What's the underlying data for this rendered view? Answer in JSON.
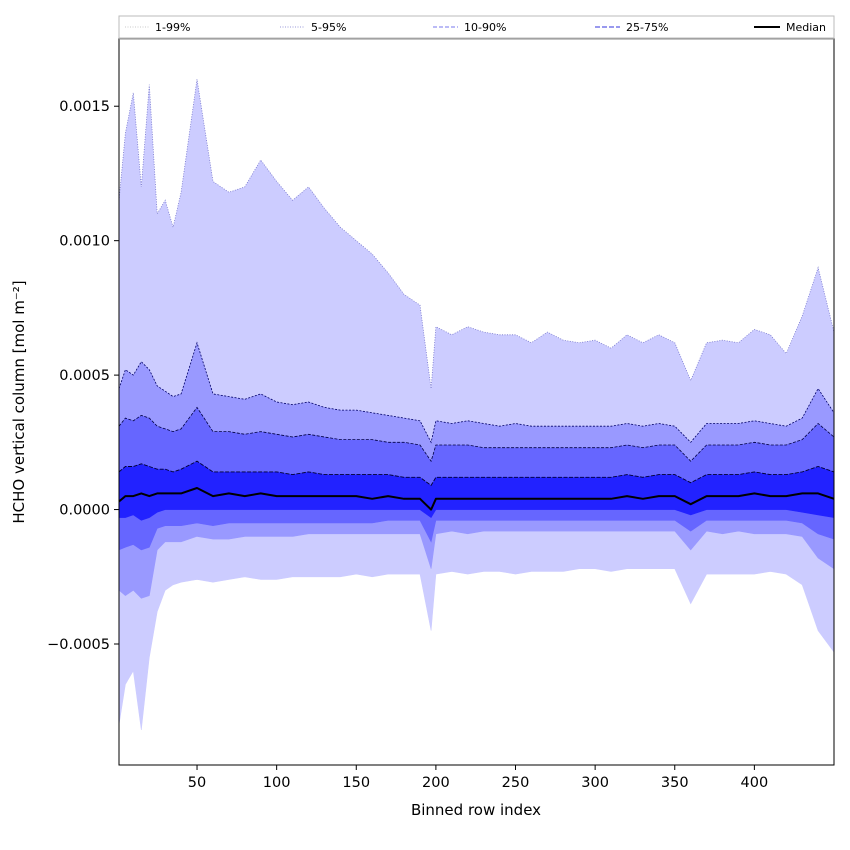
{
  "chart_data": {
    "type": "area",
    "title": "",
    "xlabel": "Binned row index",
    "ylabel": "HCHO vertical column [mol m⁻²]",
    "xlim": [
      1,
      450
    ],
    "ylim": [
      -0.00095,
      0.00175
    ],
    "x_ticks": [
      50,
      100,
      150,
      200,
      250,
      300,
      350,
      400
    ],
    "y_ticks": [
      -0.0005,
      0.0,
      0.0005,
      0.001,
      0.0015
    ],
    "y_tick_labels": [
      "−0.0005",
      "0.0000",
      "0.0005",
      "0.0010",
      "0.0015"
    ],
    "legend_placement": "top, single row spanning plot width",
    "legend": [
      "1-99%",
      "5-95%",
      "10-90%",
      "25-75%",
      "Median"
    ],
    "band_colors": [
      "#ccccff",
      "#9999ff",
      "#6666ff",
      "#2222ff"
    ],
    "median_color": "#000000",
    "x": [
      1,
      5,
      10,
      15,
      20,
      25,
      30,
      35,
      40,
      50,
      60,
      70,
      80,
      90,
      100,
      110,
      120,
      130,
      140,
      150,
      160,
      170,
      180,
      190,
      197,
      200,
      210,
      220,
      230,
      240,
      250,
      260,
      270,
      280,
      290,
      300,
      310,
      320,
      330,
      340,
      350,
      360,
      370,
      380,
      390,
      400,
      410,
      420,
      430,
      440,
      450
    ],
    "series": [
      {
        "name": "1-99%",
        "lower": [
          -0.0008,
          -0.00065,
          -0.0006,
          -0.00082,
          -0.00055,
          -0.00038,
          -0.0003,
          -0.00028,
          -0.00027,
          -0.00026,
          -0.00027,
          -0.00026,
          -0.00025,
          -0.00026,
          -0.00026,
          -0.00025,
          -0.00025,
          -0.00025,
          -0.00025,
          -0.00024,
          -0.00025,
          -0.00024,
          -0.00024,
          -0.00024,
          -0.00045,
          -0.00024,
          -0.00023,
          -0.00024,
          -0.00023,
          -0.00023,
          -0.00024,
          -0.00023,
          -0.00023,
          -0.00023,
          -0.00022,
          -0.00022,
          -0.00023,
          -0.00022,
          -0.00022,
          -0.00022,
          -0.00022,
          -0.00035,
          -0.00024,
          -0.00024,
          -0.00024,
          -0.00024,
          -0.00023,
          -0.00024,
          -0.00028,
          -0.00045,
          -0.00053
        ],
        "upper": [
          0.00115,
          0.0014,
          0.00155,
          0.0012,
          0.00158,
          0.0011,
          0.00115,
          0.00105,
          0.00118,
          0.0016,
          0.00122,
          0.00118,
          0.0012,
          0.0013,
          0.00122,
          0.00115,
          0.0012,
          0.00112,
          0.00105,
          0.001,
          0.00095,
          0.00088,
          0.0008,
          0.00076,
          0.00045,
          0.00068,
          0.00065,
          0.00068,
          0.00066,
          0.00065,
          0.00065,
          0.00062,
          0.00066,
          0.00063,
          0.00062,
          0.00063,
          0.0006,
          0.00065,
          0.00062,
          0.00065,
          0.00062,
          0.00048,
          0.00062,
          0.00063,
          0.00062,
          0.00067,
          0.00065,
          0.00058,
          0.00072,
          0.0009,
          0.00066
        ]
      },
      {
        "name": "5-95%",
        "lower": [
          -0.0003,
          -0.00032,
          -0.0003,
          -0.00033,
          -0.00032,
          -0.00015,
          -0.00012,
          -0.00012,
          -0.00012,
          -0.0001,
          -0.00011,
          -0.00011,
          -0.0001,
          -0.0001,
          -0.0001,
          -0.0001,
          -9e-05,
          -9e-05,
          -9e-05,
          -9e-05,
          -9e-05,
          -9e-05,
          -9e-05,
          -9e-05,
          -0.00022,
          -9e-05,
          -8e-05,
          -9e-05,
          -8e-05,
          -8e-05,
          -8e-05,
          -8e-05,
          -8e-05,
          -8e-05,
          -8e-05,
          -8e-05,
          -8e-05,
          -8e-05,
          -8e-05,
          -8e-05,
          -8e-05,
          -0.00015,
          -8e-05,
          -9e-05,
          -8e-05,
          -9e-05,
          -9e-05,
          -9e-05,
          -0.0001,
          -0.00018,
          -0.00022
        ],
        "upper": [
          0.00045,
          0.00052,
          0.0005,
          0.00055,
          0.00052,
          0.00046,
          0.00044,
          0.00042,
          0.00043,
          0.00062,
          0.00043,
          0.00042,
          0.00041,
          0.00043,
          0.0004,
          0.00039,
          0.0004,
          0.00038,
          0.00037,
          0.00037,
          0.00036,
          0.00035,
          0.00034,
          0.00033,
          0.00025,
          0.00033,
          0.00032,
          0.00033,
          0.00032,
          0.00031,
          0.00032,
          0.00031,
          0.00031,
          0.00031,
          0.00031,
          0.00031,
          0.00031,
          0.00032,
          0.00031,
          0.00032,
          0.00031,
          0.00025,
          0.00032,
          0.00032,
          0.00032,
          0.00033,
          0.00032,
          0.00031,
          0.00034,
          0.00045,
          0.00036
        ]
      },
      {
        "name": "10-90%",
        "lower": [
          -0.00015,
          -0.00014,
          -0.00013,
          -0.00015,
          -0.00014,
          -7e-05,
          -6e-05,
          -6e-05,
          -6e-05,
          -5e-05,
          -6e-05,
          -5e-05,
          -5e-05,
          -5e-05,
          -5e-05,
          -5e-05,
          -5e-05,
          -5e-05,
          -5e-05,
          -5e-05,
          -5e-05,
          -4e-05,
          -4e-05,
          -4e-05,
          -0.00012,
          -4e-05,
          -4e-05,
          -4e-05,
          -4e-05,
          -4e-05,
          -4e-05,
          -4e-05,
          -4e-05,
          -4e-05,
          -4e-05,
          -4e-05,
          -4e-05,
          -4e-05,
          -4e-05,
          -4e-05,
          -4e-05,
          -8e-05,
          -4e-05,
          -4e-05,
          -4e-05,
          -4e-05,
          -4e-05,
          -4e-05,
          -5e-05,
          -9e-05,
          -0.00011
        ],
        "upper": [
          0.00031,
          0.00034,
          0.00033,
          0.00035,
          0.00034,
          0.00031,
          0.0003,
          0.00029,
          0.0003,
          0.00038,
          0.00029,
          0.00029,
          0.00028,
          0.00029,
          0.00028,
          0.00027,
          0.00028,
          0.00027,
          0.00026,
          0.00026,
          0.00026,
          0.00025,
          0.00025,
          0.00024,
          0.00018,
          0.00024,
          0.00024,
          0.00024,
          0.00023,
          0.00023,
          0.00023,
          0.00023,
          0.00023,
          0.00023,
          0.00023,
          0.00023,
          0.00023,
          0.00024,
          0.00023,
          0.00024,
          0.00024,
          0.00018,
          0.00024,
          0.00024,
          0.00024,
          0.00025,
          0.00024,
          0.00024,
          0.00026,
          0.00032,
          0.00027
        ]
      },
      {
        "name": "25-75%",
        "lower": [
          -3e-05,
          -3e-05,
          -2e-05,
          -4e-05,
          -3e-05,
          -1e-05,
          0.0,
          0.0,
          0.0,
          0.0,
          0.0,
          0.0,
          0.0,
          0.0,
          0.0,
          0.0,
          0.0,
          0.0,
          0.0,
          0.0,
          0.0,
          0.0,
          0.0,
          0.0,
          -3e-05,
          0.0,
          0.0,
          0.0,
          0.0,
          0.0,
          0.0,
          0.0,
          0.0,
          0.0,
          0.0,
          0.0,
          0.0,
          0.0,
          0.0,
          0.0,
          0.0,
          -2e-05,
          0.0,
          0.0,
          0.0,
          0.0,
          0.0,
          0.0,
          -1e-05,
          -2e-05,
          -3e-05
        ],
        "upper": [
          0.00014,
          0.00016,
          0.00016,
          0.00017,
          0.00016,
          0.00015,
          0.00015,
          0.00014,
          0.00015,
          0.00018,
          0.00014,
          0.00014,
          0.00014,
          0.00014,
          0.00014,
          0.00013,
          0.00014,
          0.00013,
          0.00013,
          0.00013,
          0.00013,
          0.00013,
          0.00012,
          0.00012,
          9e-05,
          0.00012,
          0.00012,
          0.00012,
          0.00012,
          0.00012,
          0.00012,
          0.00012,
          0.00012,
          0.00012,
          0.00012,
          0.00012,
          0.00012,
          0.00013,
          0.00012,
          0.00013,
          0.00013,
          0.0001,
          0.00013,
          0.00013,
          0.00013,
          0.00014,
          0.00013,
          0.00013,
          0.00014,
          0.00016,
          0.00014
        ]
      },
      {
        "name": "Median",
        "values": [
          3e-05,
          5e-05,
          5e-05,
          6e-05,
          5e-05,
          6e-05,
          6e-05,
          6e-05,
          6e-05,
          8e-05,
          5e-05,
          6e-05,
          5e-05,
          6e-05,
          5e-05,
          5e-05,
          5e-05,
          5e-05,
          5e-05,
          5e-05,
          4e-05,
          5e-05,
          4e-05,
          4e-05,
          0.0,
          4e-05,
          4e-05,
          4e-05,
          4e-05,
          4e-05,
          4e-05,
          4e-05,
          4e-05,
          4e-05,
          4e-05,
          4e-05,
          4e-05,
          5e-05,
          4e-05,
          5e-05,
          5e-05,
          2e-05,
          5e-05,
          5e-05,
          5e-05,
          6e-05,
          5e-05,
          5e-05,
          6e-05,
          6e-05,
          4e-05
        ]
      }
    ]
  }
}
